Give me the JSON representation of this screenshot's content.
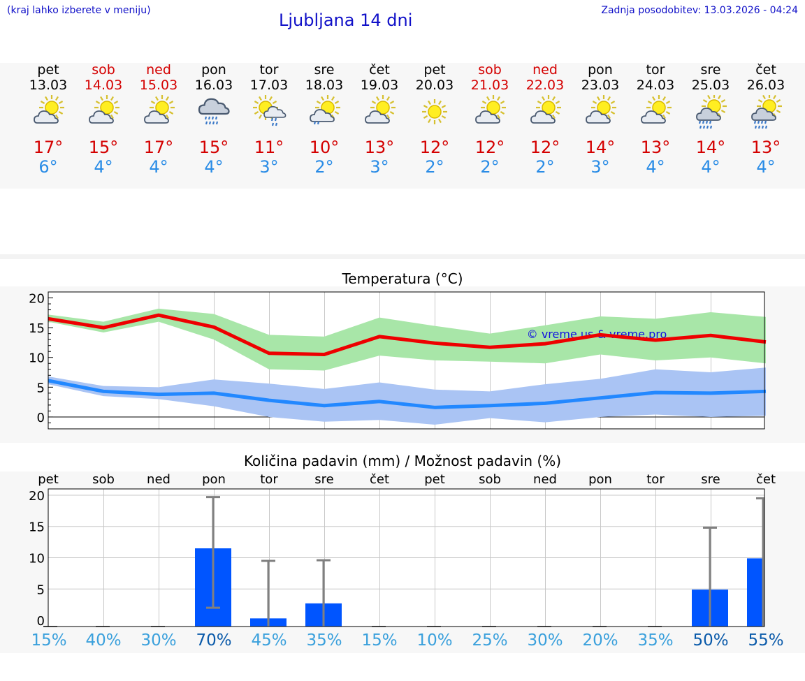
{
  "header": {
    "hint": "(kraj lahko izberete v meniju)",
    "title": "Ljubljana 14 dni",
    "updated": "Zadnja posodobitev: 13.03.2026 - 04:24"
  },
  "days": [
    {
      "name": "pet",
      "date": "13.03",
      "weekend": false,
      "icon": "partly-cloudy-icon",
      "tmax": "17°",
      "tmin": "6°"
    },
    {
      "name": "sob",
      "date": "14.03",
      "weekend": true,
      "icon": "partly-cloudy-icon",
      "tmax": "15°",
      "tmin": "4°"
    },
    {
      "name": "ned",
      "date": "15.03",
      "weekend": true,
      "icon": "partly-cloudy-icon",
      "tmax": "17°",
      "tmin": "4°"
    },
    {
      "name": "pon",
      "date": "16.03",
      "weekend": false,
      "icon": "rain-cloud-icon",
      "tmax": "15°",
      "tmin": "4°"
    },
    {
      "name": "tor",
      "date": "17.03",
      "weekend": false,
      "icon": "sun-rain-icon",
      "tmax": "11°",
      "tmin": "3°"
    },
    {
      "name": "sre",
      "date": "18.03",
      "weekend": false,
      "icon": "sun-light-rain-icon",
      "tmax": "10°",
      "tmin": "2°"
    },
    {
      "name": "čet",
      "date": "19.03",
      "weekend": false,
      "icon": "partly-cloudy-icon",
      "tmax": "13°",
      "tmin": "3°"
    },
    {
      "name": "pet",
      "date": "20.03",
      "weekend": false,
      "icon": "sun-icon",
      "tmax": "12°",
      "tmin": "2°"
    },
    {
      "name": "sob",
      "date": "21.03",
      "weekend": true,
      "icon": "partly-cloudy-icon",
      "tmax": "12°",
      "tmin": "2°"
    },
    {
      "name": "ned",
      "date": "22.03",
      "weekend": true,
      "icon": "partly-cloudy-icon",
      "tmax": "12°",
      "tmin": "2°"
    },
    {
      "name": "pon",
      "date": "23.03",
      "weekend": false,
      "icon": "partly-cloudy-icon",
      "tmax": "14°",
      "tmin": "3°"
    },
    {
      "name": "tor",
      "date": "24.03",
      "weekend": false,
      "icon": "partly-cloudy-icon",
      "tmax": "13°",
      "tmin": "4°"
    },
    {
      "name": "sre",
      "date": "25.03",
      "weekend": false,
      "icon": "sun-rain-cloud-icon",
      "tmax": "14°",
      "tmin": "4°"
    },
    {
      "name": "čet",
      "date": "26.03",
      "weekend": false,
      "icon": "sun-rain-cloud-icon",
      "tmax": "13°",
      "tmin": "4°"
    }
  ],
  "colors": {
    "max_line": "#ee0000",
    "max_band": "#a8e6a8",
    "min_line": "#2288ff",
    "min_band": "#aac4f4",
    "bar": "#0055ff",
    "error_bar": "#808080",
    "prob_high": "#0a5aaa",
    "prob_low": "#3aa0dc"
  },
  "chart_data": [
    {
      "type": "line",
      "title": "Temperatura (°C)",
      "watermark": "© vreme.us & vreme.pro",
      "ylim": [
        -2,
        21
      ],
      "yticks": [
        0,
        5,
        10,
        15,
        20
      ],
      "x": [
        0,
        1,
        2,
        3,
        4,
        5,
        6,
        7,
        8,
        9,
        10,
        11,
        12,
        13
      ],
      "series": [
        {
          "name": "max",
          "values": [
            16.5,
            15.0,
            17.1,
            15.1,
            10.7,
            10.5,
            13.5,
            12.4,
            11.7,
            12.3,
            13.8,
            12.9,
            13.7,
            12.6
          ],
          "band_low": [
            16.0,
            14.2,
            16.0,
            13.0,
            8.0,
            7.8,
            10.3,
            9.5,
            9.3,
            9.0,
            10.5,
            9.5,
            10.0,
            9.0
          ],
          "band_high": [
            17.2,
            16.0,
            18.2,
            17.3,
            13.8,
            13.5,
            16.7,
            15.3,
            14.0,
            15.4,
            16.9,
            16.5,
            17.6,
            16.8
          ]
        },
        {
          "name": "min",
          "values": [
            6.1,
            4.3,
            3.8,
            4.0,
            2.8,
            1.9,
            2.6,
            1.6,
            1.9,
            2.3,
            3.2,
            4.1,
            4.0,
            4.3
          ],
          "band_low": [
            5.5,
            3.5,
            3.0,
            1.8,
            0.0,
            -0.8,
            -0.5,
            -1.3,
            -0.2,
            -0.9,
            0.0,
            0.4,
            0.0,
            0.2
          ],
          "band_high": [
            6.8,
            5.2,
            5.0,
            6.3,
            5.6,
            4.7,
            5.8,
            4.6,
            4.3,
            5.5,
            6.4,
            8.0,
            7.5,
            8.3
          ]
        }
      ]
    },
    {
      "type": "bar",
      "title": "Količina padavin (mm) / Možnost padavin (%)",
      "ylim": [
        -1,
        21
      ],
      "yticks": [
        0,
        5,
        10,
        15,
        20
      ],
      "categories": [
        "pet",
        "sob",
        "ned",
        "pon",
        "tor",
        "sre",
        "čet",
        "pet",
        "sob",
        "ned",
        "pon",
        "tor",
        "sre",
        "čet"
      ],
      "values": [
        0,
        0,
        0,
        11.5,
        0.3,
        2.7,
        0,
        0,
        0,
        0,
        0,
        0,
        4.9,
        9.9
      ],
      "err_low": [
        0,
        0,
        0,
        2.0,
        0,
        0,
        0,
        0,
        0,
        0,
        0,
        0,
        0,
        0
      ],
      "err_high": [
        0,
        0,
        0,
        19.7,
        9.5,
        9.6,
        0,
        0,
        0,
        0,
        0,
        0,
        14.8,
        19.5
      ],
      "probability": [
        "15%",
        "40%",
        "30%",
        "70%",
        "45%",
        "35%",
        "15%",
        "10%",
        "25%",
        "30%",
        "20%",
        "35%",
        "50%",
        "55%"
      ],
      "prob_emphasis": [
        false,
        false,
        false,
        true,
        false,
        false,
        false,
        false,
        false,
        false,
        false,
        false,
        true,
        true
      ]
    }
  ]
}
